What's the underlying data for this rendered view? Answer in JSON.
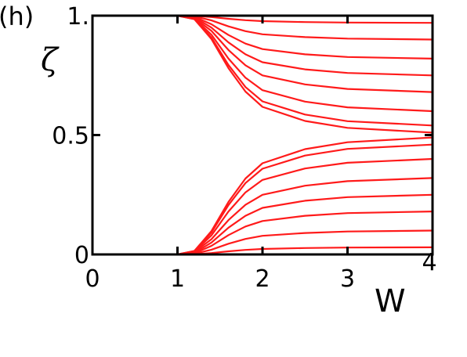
{
  "chart_data": {
    "type": "line",
    "panel_label": "(h)",
    "ylabel": "ζ",
    "xlabel": "W",
    "x": [
      0,
      1,
      1.2,
      1.4,
      1.6,
      1.8,
      2,
      2.5,
      3,
      4
    ],
    "xlim": [
      0,
      4
    ],
    "xticks": [
      0,
      1,
      2,
      3,
      4
    ],
    "ylim": [
      0,
      1
    ],
    "yticks": [
      0,
      0.5,
      {
        "value": 1,
        "label": "1."
      }
    ],
    "color": "#ff1a1a",
    "series": [
      {
        "values": [
          1,
          1,
          0.999,
          0.994,
          0.987,
          0.981,
          0.977,
          0.973,
          0.971,
          0.97
        ]
      },
      {
        "values": [
          1,
          1,
          0.997,
          0.98,
          0.955,
          0.935,
          0.922,
          0.91,
          0.904,
          0.9
        ]
      },
      {
        "values": [
          1,
          1,
          0.995,
          0.964,
          0.919,
          0.883,
          0.86,
          0.838,
          0.827,
          0.82
        ]
      },
      {
        "values": [
          1,
          1,
          0.993,
          0.95,
          0.888,
          0.838,
          0.805,
          0.775,
          0.76,
          0.75
        ]
      },
      {
        "values": [
          1,
          1,
          0.99,
          0.936,
          0.856,
          0.792,
          0.75,
          0.712,
          0.693,
          0.68
        ]
      },
      {
        "values": [
          1,
          1,
          0.988,
          0.92,
          0.82,
          0.74,
          0.688,
          0.64,
          0.616,
          0.6
        ]
      },
      {
        "values": [
          1,
          1,
          0.986,
          0.908,
          0.793,
          0.701,
          0.641,
          0.586,
          0.558,
          0.54
        ]
      },
      {
        "values": [
          1,
          1,
          0.985,
          0.902,
          0.78,
          0.682,
          0.618,
          0.559,
          0.53,
          0.51
        ]
      },
      {
        "values": [
          0,
          0,
          0.001,
          0.006,
          0.013,
          0.019,
          0.023,
          0.027,
          0.029,
          0.03
        ]
      },
      {
        "values": [
          0,
          0,
          0.003,
          0.02,
          0.045,
          0.065,
          0.078,
          0.09,
          0.096,
          0.1
        ]
      },
      {
        "values": [
          0,
          0,
          0.005,
          0.036,
          0.081,
          0.117,
          0.14,
          0.162,
          0.173,
          0.18
        ]
      },
      {
        "values": [
          0,
          0,
          0.007,
          0.05,
          0.112,
          0.162,
          0.195,
          0.225,
          0.24,
          0.25
        ]
      },
      {
        "values": [
          0,
          0,
          0.01,
          0.064,
          0.144,
          0.208,
          0.25,
          0.288,
          0.307,
          0.32
        ]
      },
      {
        "values": [
          0,
          0,
          0.012,
          0.08,
          0.18,
          0.26,
          0.312,
          0.36,
          0.384,
          0.4
        ]
      },
      {
        "values": [
          0,
          0,
          0.014,
          0.092,
          0.207,
          0.299,
          0.359,
          0.414,
          0.442,
          0.46
        ]
      },
      {
        "values": [
          0,
          0,
          0.015,
          0.098,
          0.22,
          0.318,
          0.382,
          0.441,
          0.47,
          0.49
        ]
      }
    ]
  }
}
